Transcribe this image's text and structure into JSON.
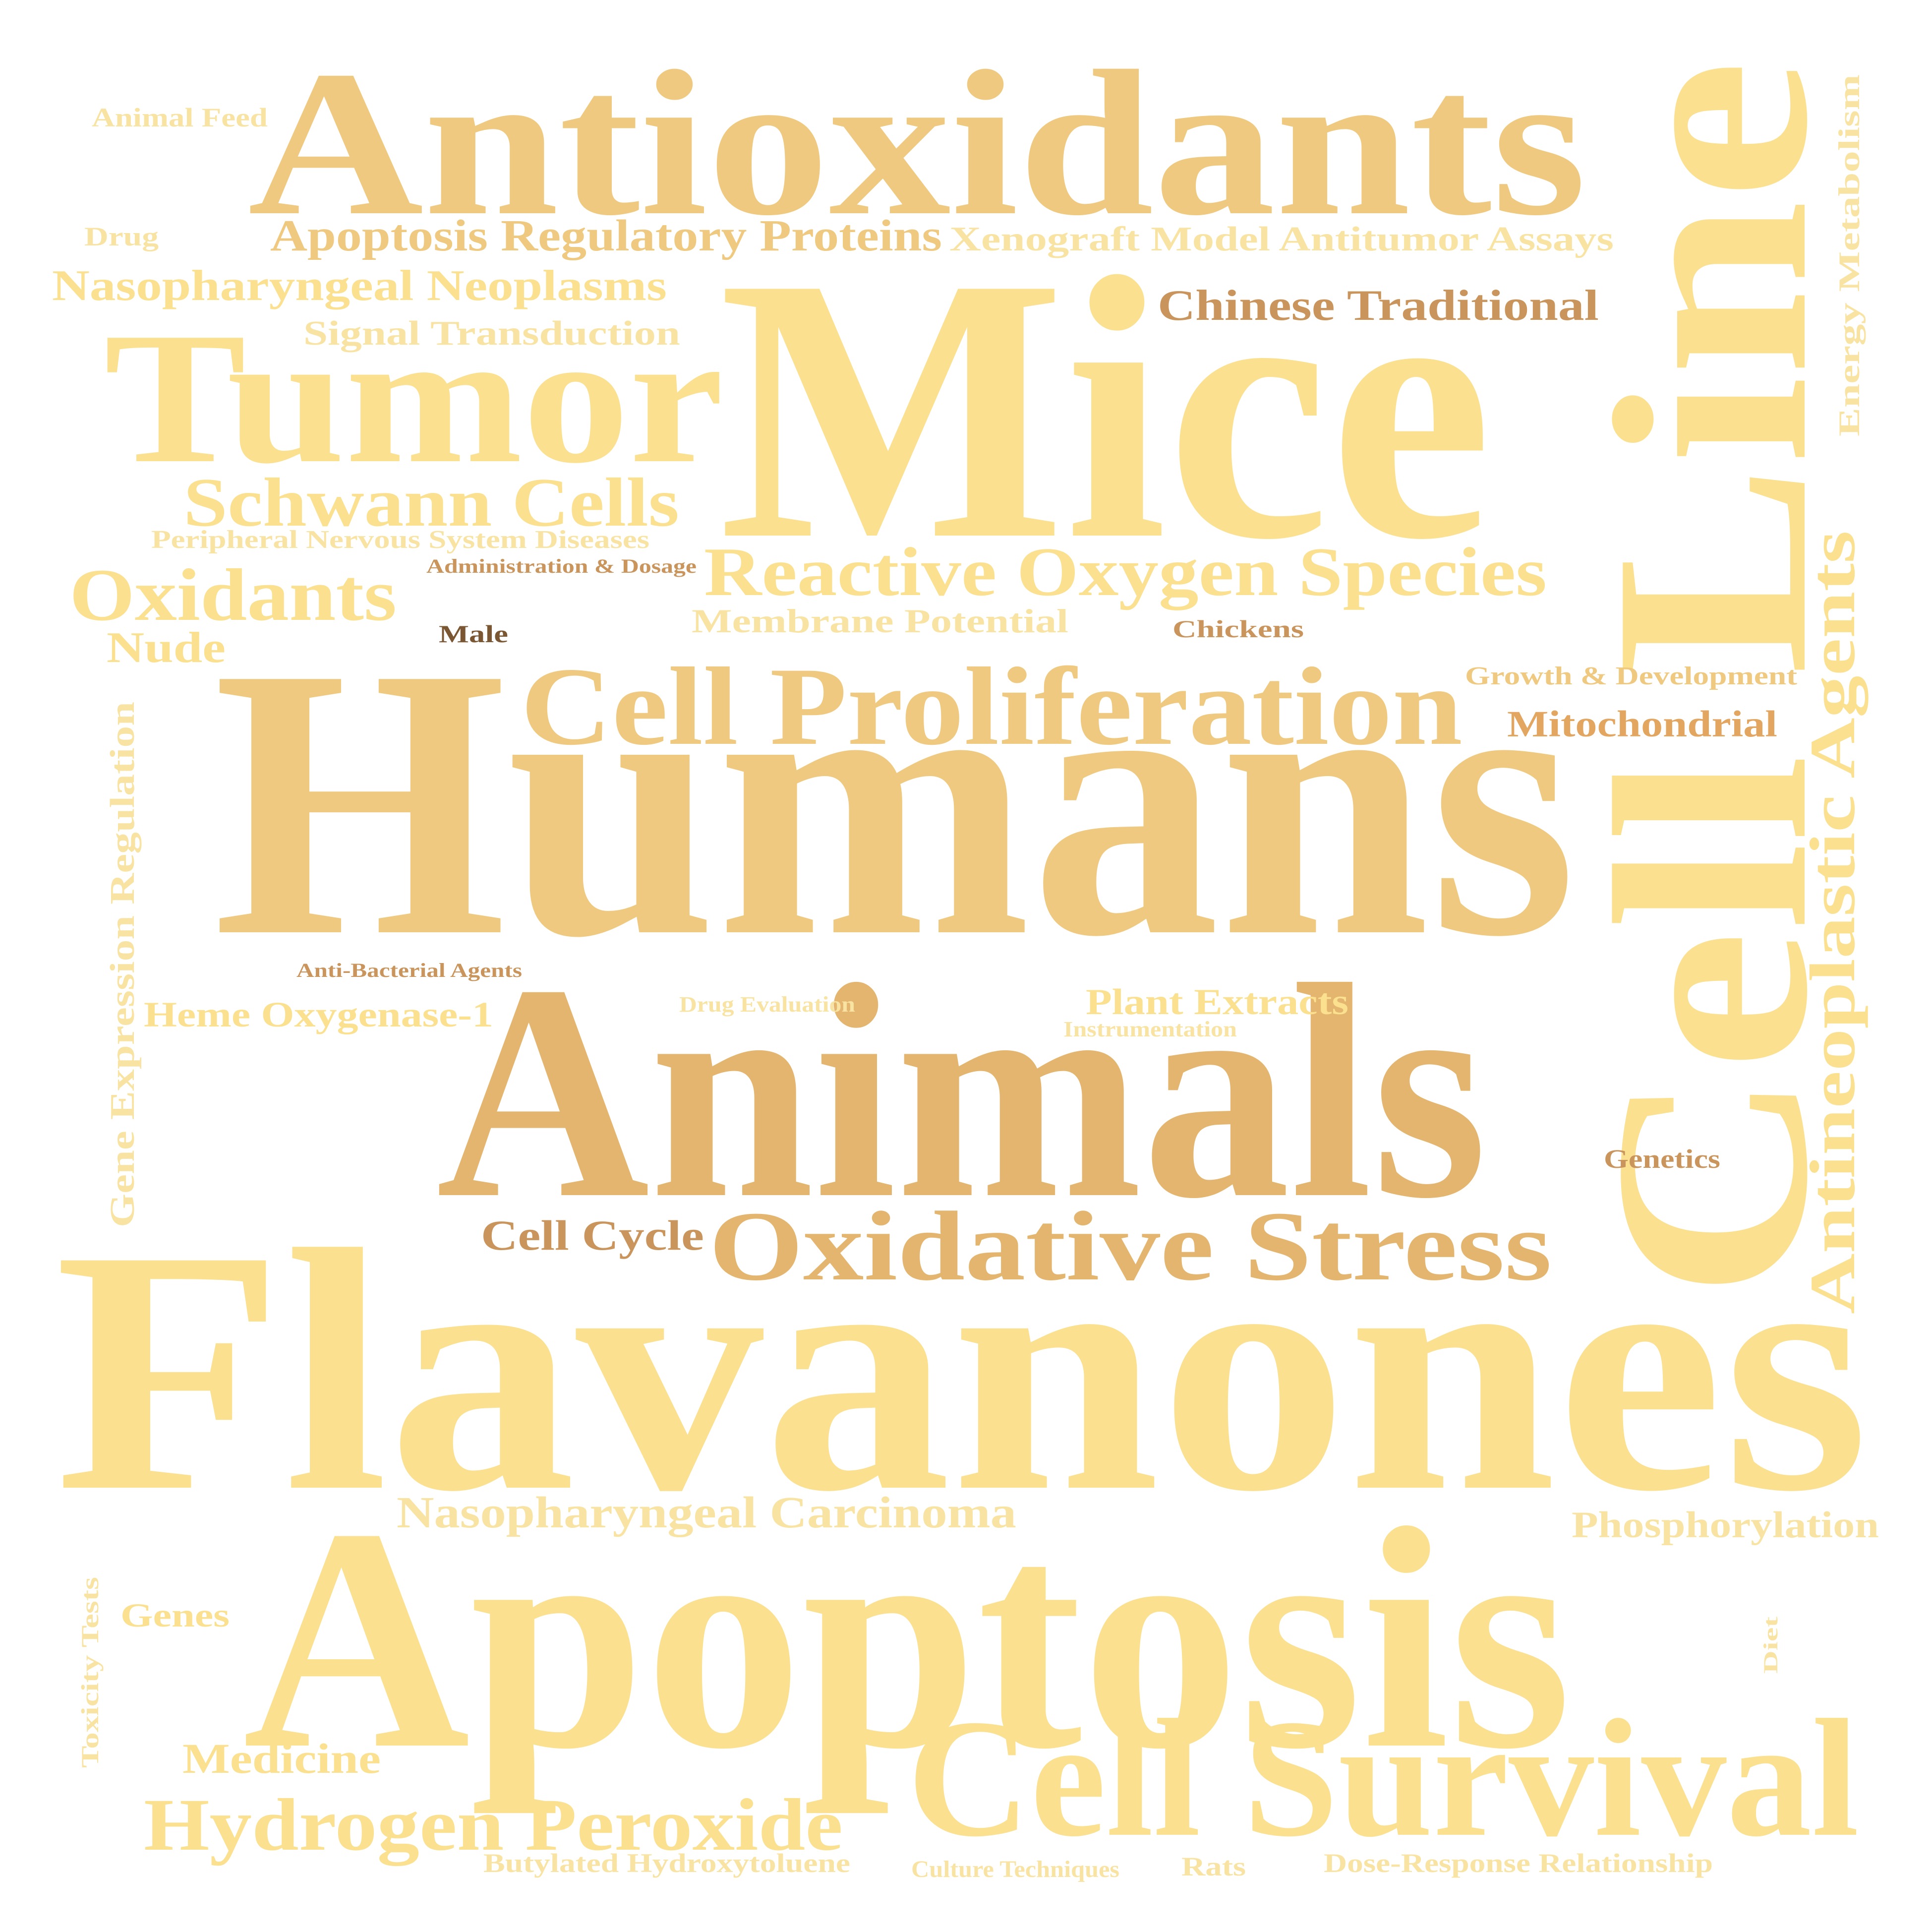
{
  "colors": {
    "background": "#ffffff",
    "light": "#fae08f",
    "pale": "#f8e3a2",
    "mid": "#efc97f",
    "deep": "#e3b56f",
    "brown": "#c9955c",
    "orange": "#e2a661",
    "dark": "#7a5633"
  },
  "words": [
    {
      "text": "Antioxidants",
      "tone": "mid"
    },
    {
      "text": "Mice",
      "tone": "light"
    },
    {
      "text": "Cell Line",
      "tone": "light"
    },
    {
      "text": "Humans",
      "tone": "mid"
    },
    {
      "text": "Tumor",
      "tone": "light"
    },
    {
      "text": "Animals",
      "tone": "deep"
    },
    {
      "text": "Flavanones",
      "tone": "light"
    },
    {
      "text": "Apoptosis",
      "tone": "light"
    },
    {
      "text": "Cell Survival",
      "tone": "light"
    },
    {
      "text": "Cell Proliferation",
      "tone": "mid"
    },
    {
      "text": "Oxidative Stress",
      "tone": "deep"
    },
    {
      "text": "Reactive Oxygen Species",
      "tone": "light"
    },
    {
      "text": "Antineoplastic Agents",
      "tone": "light"
    },
    {
      "text": "Schwann Cells",
      "tone": "light"
    },
    {
      "text": "Oxidants",
      "tone": "light"
    },
    {
      "text": "Hydrogen Peroxide",
      "tone": "light"
    },
    {
      "text": "Apoptosis Regulatory Proteins",
      "tone": "mid"
    },
    {
      "text": "Nasopharyngeal Neoplasms",
      "tone": "light"
    },
    {
      "text": "Nasopharyngeal Carcinoma",
      "tone": "pale"
    },
    {
      "text": "Xenograft Model Antitumor Assays",
      "tone": "pale"
    },
    {
      "text": "Chinese Traditional",
      "tone": "brown"
    },
    {
      "text": "Signal Transduction",
      "tone": "pale"
    },
    {
      "text": "Energy Metabolism",
      "tone": "pale"
    },
    {
      "text": "Gene Expression Regulation",
      "tone": "pale"
    },
    {
      "text": "Peripheral Nervous System Diseases",
      "tone": "pale"
    },
    {
      "text": "Administration & Dosage",
      "tone": "brown"
    },
    {
      "text": "Membrane Potential",
      "tone": "pale"
    },
    {
      "text": "Nude",
      "tone": "light"
    },
    {
      "text": "Male",
      "tone": "dark"
    },
    {
      "text": "Chickens",
      "tone": "brown"
    },
    {
      "text": "Growth & Development",
      "tone": "mid"
    },
    {
      "text": "Mitochondrial",
      "tone": "orange"
    },
    {
      "text": "Anti-Bacterial Agents",
      "tone": "brown"
    },
    {
      "text": "Heme Oxygenase-1",
      "tone": "light"
    },
    {
      "text": "Drug Evaluation",
      "tone": "pale"
    },
    {
      "text": "Plant Extracts",
      "tone": "light"
    },
    {
      "text": "Instrumentation",
      "tone": "pale"
    },
    {
      "text": "Genetics",
      "tone": "brown"
    },
    {
      "text": "Cell Cycle",
      "tone": "brown"
    },
    {
      "text": "Phosphorylation",
      "tone": "pale"
    },
    {
      "text": "Genes",
      "tone": "light"
    },
    {
      "text": "Toxicity Tests",
      "tone": "pale"
    },
    {
      "text": "Medicine",
      "tone": "light"
    },
    {
      "text": "Diet",
      "tone": "pale"
    },
    {
      "text": "Butylated Hydroxytoluene",
      "tone": "pale"
    },
    {
      "text": "Culture Techniques",
      "tone": "pale"
    },
    {
      "text": "Rats",
      "tone": "pale"
    },
    {
      "text": "Dose-Response Relationship",
      "tone": "pale"
    },
    {
      "text": "Animal Feed",
      "tone": "pale"
    },
    {
      "text": "Drug",
      "tone": "pale"
    }
  ]
}
